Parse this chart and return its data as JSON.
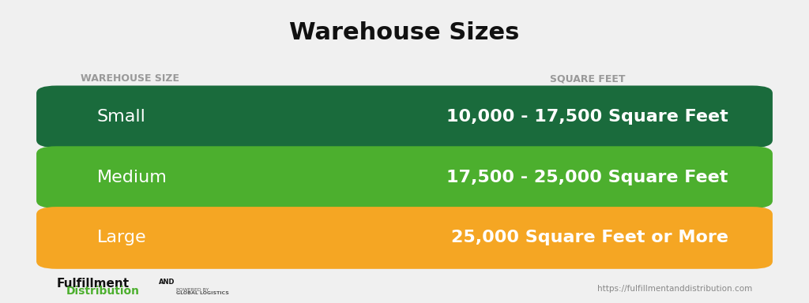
{
  "title": "Warehouse Sizes",
  "title_fontsize": 22,
  "title_fontweight": "bold",
  "background_color": "#f0f0f0",
  "col_header_left": "WAREHOUSE SIZE",
  "col_header_right": "SQUARE FEET",
  "col_header_color": "#999999",
  "col_header_fontsize": 9,
  "rows": [
    {
      "label": "Small",
      "value": "10,000 - 17,500 Square Feet",
      "color": "#1a6b3c"
    },
    {
      "label": "Medium",
      "value": "17,500 - 25,000 Square Feet",
      "color": "#4caf2e"
    },
    {
      "label": "Large",
      "value": "25,000 Square Feet or More",
      "color": "#f5a623"
    }
  ],
  "row_text_color": "#ffffff",
  "row_label_fontsize": 16,
  "row_value_fontsize": 16,
  "row_value_fontweight": "bold",
  "footer_right": "https://fulfillmentanddistribution.com",
  "footer_fontsize": 8
}
